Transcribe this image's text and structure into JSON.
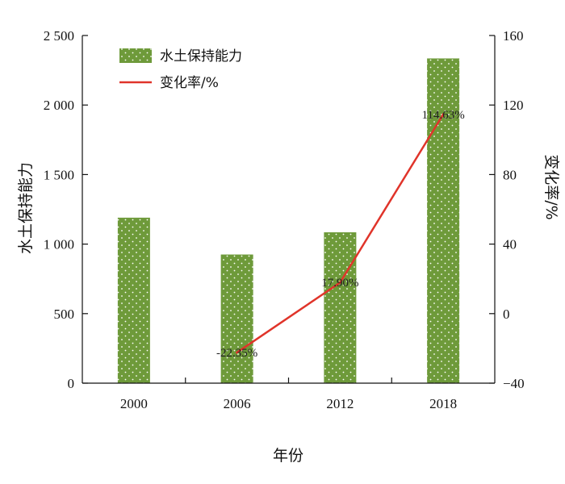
{
  "chart_data": {
    "type": "bar+line",
    "categories": [
      "2000",
      "2006",
      "2012",
      "2018"
    ],
    "xlabel": "年份",
    "series": [
      {
        "name": "水土保持能力",
        "kind": "bar",
        "axis": "left",
        "color": "#6e9a3a",
        "values": [
          1190,
          925,
          1085,
          2335
        ]
      },
      {
        "name": "变化率/%",
        "kind": "line",
        "axis": "right",
        "color": "#e0342a",
        "values": [
          null,
          -22.35,
          17.9,
          114.63
        ],
        "labels": [
          "",
          "-22.35%",
          "17.90%",
          "114.63%"
        ]
      }
    ],
    "y_left": {
      "label": "水土保持能力",
      "min": 0,
      "max": 2500,
      "ticks": [
        0,
        500,
        1000,
        1500,
        2000,
        2500
      ],
      "tick_labels": [
        "0",
        "500",
        "1 000",
        "1 500",
        "2 000",
        "2 500"
      ]
    },
    "y_right": {
      "label": "变化率/%",
      "min": -40,
      "max": 160,
      "ticks": [
        -40,
        0,
        40,
        80,
        120,
        160
      ],
      "tick_labels": [
        "−40",
        "0",
        "40",
        "80",
        "120",
        "160"
      ]
    },
    "legend": "top-left",
    "grid": false
  }
}
